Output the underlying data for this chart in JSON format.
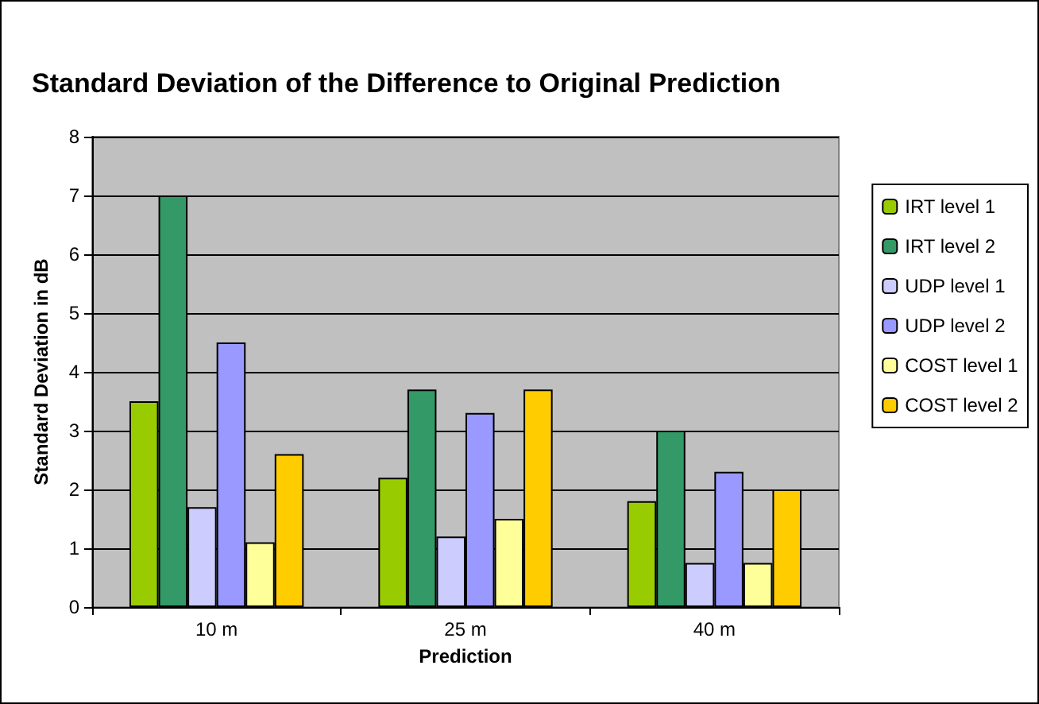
{
  "chart_data": {
    "type": "bar",
    "title": "Standard Deviation of the Difference to Original Prediction",
    "xlabel": "Prediction",
    "ylabel": "Standard Deviation in dB",
    "categories": [
      "10 m",
      "25 m",
      "40 m"
    ],
    "series": [
      {
        "name": "IRT level 1",
        "color": "#99cc00",
        "values": [
          3.5,
          2.2,
          1.8
        ]
      },
      {
        "name": "IRT level 2",
        "color": "#339966",
        "values": [
          7.0,
          3.7,
          3.0
        ]
      },
      {
        "name": "UDP level 1",
        "color": "#ccccff",
        "values": [
          1.7,
          1.2,
          0.75
        ]
      },
      {
        "name": "UDP level 2",
        "color": "#9999ff",
        "values": [
          4.5,
          3.3,
          2.3
        ]
      },
      {
        "name": "COST level 1",
        "color": "#ffff99",
        "values": [
          1.1,
          1.5,
          0.75
        ]
      },
      {
        "name": "COST level 2",
        "color": "#ffcc00",
        "values": [
          2.6,
          3.7,
          2.0
        ]
      }
    ],
    "ylim": [
      0,
      8
    ],
    "yticks": [
      0,
      1,
      2,
      3,
      4,
      5,
      6,
      7,
      8
    ],
    "grid": "y",
    "legend": "right"
  }
}
